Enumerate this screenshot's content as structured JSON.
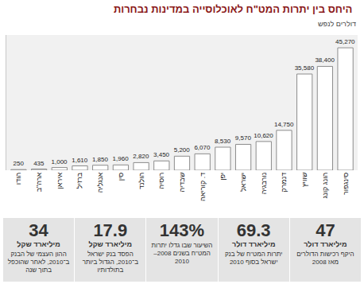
{
  "chart_data": {
    "type": "bar",
    "title": "היחס בין יתרות המט\"ח לאוכלוסייה במדינות נבחרות",
    "subtitle": "דולרים לנפש",
    "categories": [
      "הודו",
      "ארה\"ב",
      "איראן",
      "ברזיל",
      "אנגליה",
      "סין",
      "הולנד",
      "רוסיה",
      "שבדיה",
      "ד. קוריאה",
      "יפן",
      "ישראל",
      "נורבגיה",
      "דנמרק",
      "שוויץ",
      "הונג קונג",
      "סינגפור"
    ],
    "values": [
      250,
      435,
      1000,
      1610,
      1850,
      1960,
      2820,
      3450,
      5200,
      6070,
      8530,
      9570,
      10620,
      14750,
      35580,
      38400,
      45270
    ],
    "value_labels": [
      "250",
      "435",
      "1,000",
      "1,610",
      "1,850",
      "1,960",
      "2,820",
      "3,450",
      "5,200",
      "6,070",
      "8,530",
      "9,570",
      "10,620",
      "14,750",
      "35,580",
      "38,400",
      "45,270"
    ],
    "color": "#ffffff",
    "ylim": [
      0,
      50000
    ],
    "data_labels": true,
    "tick_labels": "x",
    "grid": false
  },
  "panels": [
    {
      "number": "47",
      "unit": "מיליארד דולר",
      "text": "היקף רכישות הדולרים מאז 2008"
    },
    {
      "number": "69.3",
      "unit": "מיליארד דולר",
      "text": "יתרות המט\"ח של בנק ישראל בסוף 2010"
    },
    {
      "number": "143%",
      "text": "השיעור שבו גדלו יתרות המט\"ח בשנים 2008–2010"
    },
    {
      "number": "17.9",
      "unit": "מיליארד שקל",
      "text": "הפסד בנק ישראל ב־2010, הגדול ביותר בתולדותיו"
    },
    {
      "number": "34",
      "unit": "מיליארד שקל",
      "text": "ההון העצמי של הבנק ב־2010, לאחר שהוכפל בתוך שנה"
    }
  ]
}
